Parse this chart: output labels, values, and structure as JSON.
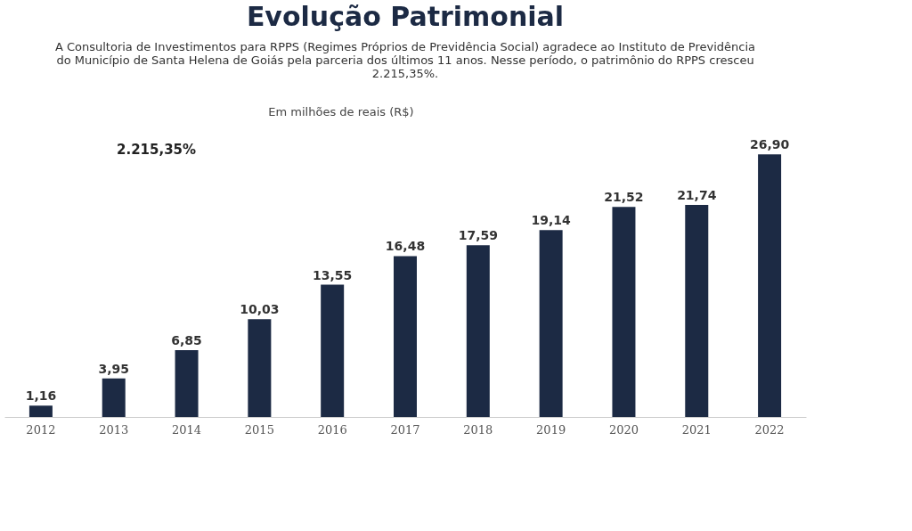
{
  "chart_data": {
    "type": "bar",
    "title": "Evolução Patrimonial",
    "subtitle": "A Consultoria de Investimentos para RPPS (Regimes Próprios de Previdência Social) agradece ao Instituto de Previdência do Município de Santa Helena de Goiás pela parceria dos últimos 11 anos. Nesse período, o patrimônio do RPPS cresceu 2.215,35%.",
    "annotations": [
      "Em milhões de reais (R$)",
      "2.215,35%"
    ],
    "categories": [
      "2012",
      "2013",
      "2014",
      "2015",
      "2016",
      "2017",
      "2018",
      "2019",
      "2020",
      "2021",
      "2022"
    ],
    "values": [
      1.16,
      3.95,
      6.85,
      10.03,
      13.55,
      16.48,
      17.59,
      19.14,
      21.52,
      21.74,
      26.9
    ],
    "value_labels": [
      "1,16",
      "3,95",
      "6,85",
      "10,03",
      "13,55",
      "16,48",
      "17,59",
      "19,14",
      "21,52",
      "21,74",
      "26,90"
    ],
    "color": "#1c2a44",
    "grid": false
  }
}
